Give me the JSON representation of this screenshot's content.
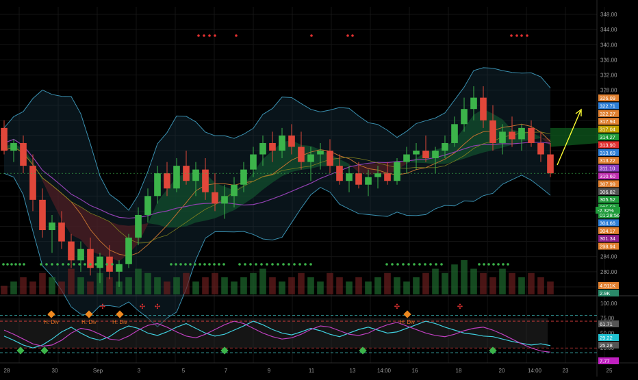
{
  "chart_data": [
    {
      "type": "candlestick",
      "title": "",
      "ylim": [
        274,
        350
      ],
      "y_ticks": [
        "348.00",
        "344.00",
        "340.00",
        "336.00",
        "332.00",
        "328.00",
        "324.00",
        "284.00",
        "280.00"
      ],
      "x_ticks": [
        "28",
        "30",
        "Sep",
        "3",
        "5",
        "7",
        "9",
        "11",
        "13",
        "14:00",
        "16",
        "18",
        "20",
        "14:00",
        "23",
        "25"
      ],
      "price_badges": [
        {
          "text": "326.09",
          "color": "#e08030"
        },
        {
          "text": "322.71",
          "color": "#2f7fd6"
        },
        {
          "text": "322.27",
          "color": "#e08030"
        },
        {
          "text": "317.94",
          "color": "#e08030"
        },
        {
          "text": "317.04",
          "color": "#c0a000"
        },
        {
          "text": "314.27",
          "color": "#1f9a3a"
        },
        {
          "text": "313.90",
          "color": "#e03030"
        },
        {
          "text": "313.69",
          "color": "#2f7fd6"
        },
        {
          "text": "313.22",
          "color": "#e08030"
        },
        {
          "text": "311.10",
          "color": "#8c3fbf"
        },
        {
          "text": "310.60",
          "color": "#c02fb0"
        },
        {
          "text": "307.99",
          "color": "#e08030"
        },
        {
          "text": "306.82",
          "color": "#555555"
        },
        {
          "text": "305.52",
          "color": "#1f9a3a"
        },
        {
          "text": "305.52",
          "color": "#1f9a3a"
        },
        {
          "text": "01:28:56",
          "color": "#1f9a3a"
        },
        {
          "text": "304.66",
          "color": "#2f7fd6"
        },
        {
          "text": "304.17",
          "color": "#e08030"
        },
        {
          "text": "301.34",
          "color": "#8c1f8c"
        },
        {
          "text": "298.94",
          "color": "#e08030"
        },
        {
          "text": "4.911K",
          "color": "#e08030"
        },
        {
          "text": "2.9K",
          "color": "#2a8a6a"
        }
      ],
      "change_badge": {
        "text": "-2.32%",
        "color": "#1f9a3a"
      },
      "chart_labels": [
        "H. Div",
        "H. Div",
        "H. Div",
        "H. Div",
        "H. Div"
      ],
      "candles": [
        [
          318,
          320,
          311,
          312
        ],
        [
          312,
          315,
          309,
          314
        ],
        [
          314,
          316,
          306,
          308
        ],
        [
          308,
          311,
          296,
          299
        ],
        [
          299,
          302,
          289,
          291
        ],
        [
          291,
          295,
          285,
          293
        ],
        [
          293,
          296,
          286,
          288
        ],
        [
          288,
          290,
          281,
          283
        ],
        [
          283,
          288,
          280,
          286
        ],
        [
          286,
          289,
          279,
          281
        ],
        [
          281,
          285,
          277,
          284
        ],
        [
          284,
          287,
          278,
          280
        ],
        [
          280,
          283,
          276,
          282
        ],
        [
          282,
          290,
          281,
          289
        ],
        [
          289,
          297,
          287,
          295
        ],
        [
          295,
          302,
          293,
          300
        ],
        [
          300,
          308,
          298,
          306
        ],
        [
          306,
          309,
          300,
          302
        ],
        [
          302,
          310,
          301,
          308
        ],
        [
          308,
          312,
          303,
          304
        ],
        [
          304,
          309,
          300,
          307
        ],
        [
          307,
          310,
          299,
          301
        ],
        [
          301,
          306,
          296,
          298
        ],
        [
          298,
          303,
          294,
          300
        ],
        [
          300,
          305,
          297,
          303
        ],
        [
          303,
          309,
          301,
          307
        ],
        [
          307,
          313,
          305,
          311
        ],
        [
          311,
          316,
          308,
          314
        ],
        [
          314,
          317,
          309,
          312
        ],
        [
          312,
          318,
          310,
          316
        ],
        [
          316,
          319,
          311,
          313
        ],
        [
          313,
          317,
          307,
          309
        ],
        [
          309,
          313,
          304,
          311
        ],
        [
          311,
          314,
          307,
          312
        ],
        [
          312,
          315,
          306,
          308
        ],
        [
          308,
          311,
          303,
          304
        ],
        [
          304,
          308,
          301,
          306
        ],
        [
          306,
          309,
          302,
          303
        ],
        [
          303,
          307,
          300,
          305
        ],
        [
          305,
          308,
          302,
          306
        ],
        [
          306,
          309,
          303,
          304
        ],
        [
          304,
          310,
          303,
          309
        ],
        [
          309,
          313,
          306,
          311
        ],
        [
          311,
          314,
          307,
          312
        ],
        [
          312,
          316,
          309,
          310
        ],
        [
          310,
          313,
          306,
          312
        ],
        [
          312,
          316,
          310,
          314
        ],
        [
          314,
          321,
          313,
          319
        ],
        [
          319,
          326,
          317,
          323
        ],
        [
          323,
          329,
          320,
          326
        ],
        [
          326,
          329,
          318,
          320
        ],
        [
          320,
          324,
          312,
          314
        ],
        [
          314,
          319,
          311,
          317
        ],
        [
          317,
          321,
          313,
          315
        ],
        [
          315,
          319,
          312,
          318
        ],
        [
          318,
          320,
          313,
          314
        ],
        [
          314,
          317,
          309,
          311
        ],
        [
          311,
          314,
          305,
          306
        ]
      ],
      "volume": [
        2,
        3,
        4,
        3,
        5,
        4,
        3,
        6,
        4,
        3,
        5,
        4,
        3,
        4,
        6,
        5,
        4,
        3,
        4,
        5,
        3,
        4,
        5,
        4,
        3,
        4,
        5,
        6,
        4,
        3,
        4,
        5,
        4,
        3,
        5,
        4,
        3,
        4,
        3,
        4,
        5,
        4,
        3,
        4,
        5,
        6,
        5,
        7,
        8,
        6,
        5,
        4,
        6,
        5,
        4,
        5,
        4,
        3
      ],
      "annotations": {
        "arrow": "up-right",
        "arrow_color": "#ffff33"
      }
    },
    {
      "type": "line",
      "title": "",
      "ylim": [
        0,
        108
      ],
      "y_ticks": [
        "100.00",
        "75.00",
        "50.00",
        "25.00"
      ],
      "series": [
        {
          "color": "#40d0e0",
          "values": [
            45,
            38,
            30,
            25,
            30,
            40,
            52,
            60,
            50,
            42,
            38,
            44,
            55,
            62,
            58,
            50,
            46,
            52,
            60,
            66,
            58,
            50,
            45,
            48,
            55,
            62,
            70,
            64,
            56,
            50,
            47,
            52,
            58,
            54,
            48,
            44,
            50,
            56,
            60,
            55,
            50,
            52,
            58,
            64,
            70,
            66,
            60,
            55,
            50,
            48,
            45,
            44,
            40,
            36,
            33,
            30,
            32,
            29
          ]
        },
        {
          "color": "#c040c0",
          "values": [
            55,
            48,
            40,
            32,
            28,
            30,
            38,
            50,
            58,
            55,
            48,
            40,
            38,
            45,
            55,
            63,
            66,
            60,
            52,
            45,
            42,
            48,
            56,
            64,
            70,
            66,
            58,
            50,
            44,
            40,
            42,
            48,
            56,
            62,
            60,
            54,
            48,
            46,
            50,
            58,
            64,
            68,
            62,
            56,
            50,
            46,
            44,
            48,
            54,
            58,
            60,
            55,
            48,
            40,
            32,
            25,
            20,
            18
          ]
        }
      ],
      "levels": [
        {
          "value": 80,
          "color": "#40c0c0"
        },
        {
          "value": 70,
          "color": "#e04040"
        },
        {
          "value": 25,
          "color": "#e04040"
        },
        {
          "value": 17,
          "color": "#40c0c0"
        }
      ],
      "value_badges": [
        {
          "text": "61.71",
          "color": "#555555"
        },
        {
          "text": "29.22",
          "color": "#20c0d0"
        },
        {
          "text": "25.28",
          "color": "#555555"
        },
        {
          "text": "7.77",
          "color": "#c020c0"
        }
      ]
    }
  ]
}
